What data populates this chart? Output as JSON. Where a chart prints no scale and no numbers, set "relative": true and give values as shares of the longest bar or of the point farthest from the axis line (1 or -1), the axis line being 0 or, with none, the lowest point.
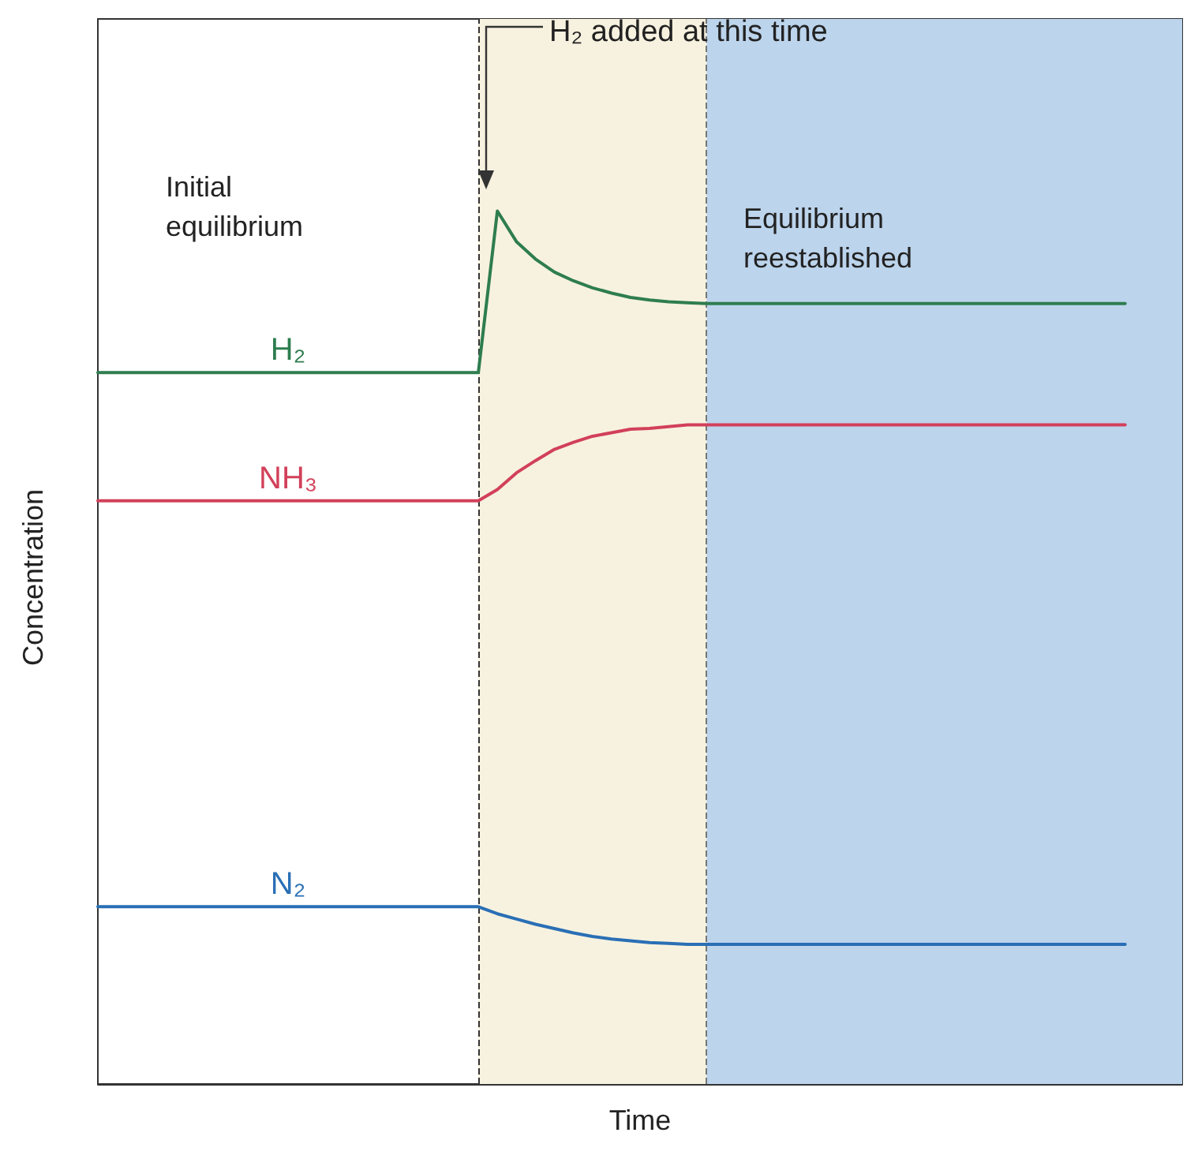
{
  "chart_data": {
    "type": "line",
    "relative": true,
    "xlabel": "Time",
    "ylabel": "Concentration",
    "tick_labels": false,
    "legend": false,
    "grid": false,
    "marker": "none",
    "line_style": "solid",
    "categories": [
      null,
      null,
      null,
      null,
      null,
      null,
      null,
      null,
      null,
      null,
      null,
      null,
      null,
      null,
      null,
      null,
      null,
      null,
      null,
      null,
      null,
      null,
      null,
      null,
      null,
      null,
      null,
      null,
      null,
      null,
      null,
      null,
      null,
      null,
      null,
      null,
      null,
      null,
      null,
      null,
      null,
      null,
      null,
      null,
      null,
      null,
      null,
      null,
      null,
      null,
      null,
      null,
      null,
      null,
      null,
      null,
      null,
      null
    ],
    "series": [
      {
        "name": "H₂",
        "color": "#2e7d4f",
        "values": [
          0.815,
          0.815,
          0.815,
          0.815,
          0.815,
          0.815,
          0.815,
          0.815,
          0.815,
          0.815,
          0.815,
          0.815,
          0.815,
          0.815,
          0.815,
          0.815,
          0.815,
          0.815,
          0.815,
          0.815,
          0.815,
          1.0,
          0.965,
          0.945,
          0.93,
          0.92,
          0.912,
          0.906,
          0.901,
          0.898,
          0.896,
          0.895,
          0.894,
          0.894,
          0.894,
          0.894,
          0.894,
          0.894,
          0.894,
          0.894,
          0.894,
          0.894,
          0.894,
          0.894,
          0.894,
          0.894,
          0.894,
          0.894,
          0.894,
          0.894,
          0.894,
          0.894,
          0.894,
          0.894,
          0.894,
          null,
          null,
          null
        ]
      },
      {
        "name": "NH₃",
        "color": "#d2405a",
        "values": [
          0.668,
          0.668,
          0.668,
          0.668,
          0.668,
          0.668,
          0.668,
          0.668,
          0.668,
          0.668,
          0.668,
          0.668,
          0.668,
          0.668,
          0.668,
          0.668,
          0.668,
          0.668,
          0.668,
          0.668,
          0.668,
          0.681,
          0.7,
          0.714,
          0.727,
          0.735,
          0.742,
          0.746,
          0.75,
          0.751,
          0.753,
          0.755,
          0.755,
          0.755,
          0.755,
          0.755,
          0.755,
          0.755,
          0.755,
          0.755,
          0.755,
          0.755,
          0.755,
          0.755,
          0.755,
          0.755,
          0.755,
          0.755,
          0.755,
          0.755,
          0.755,
          0.755,
          0.755,
          0.755,
          0.755,
          null,
          null,
          null
        ]
      },
      {
        "name": "N₂",
        "color": "#2a6fb5",
        "values": [
          0.203,
          0.203,
          0.203,
          0.203,
          0.203,
          0.203,
          0.203,
          0.203,
          0.203,
          0.203,
          0.203,
          0.203,
          0.203,
          0.203,
          0.203,
          0.203,
          0.203,
          0.203,
          0.203,
          0.203,
          0.203,
          0.195,
          0.189,
          0.183,
          0.178,
          0.173,
          0.169,
          0.166,
          0.164,
          0.162,
          0.161,
          0.16,
          0.16,
          0.16,
          0.16,
          0.16,
          0.16,
          0.16,
          0.16,
          0.16,
          0.16,
          0.16,
          0.16,
          0.16,
          0.16,
          0.16,
          0.16,
          0.16,
          0.16,
          0.16,
          0.16,
          0.16,
          0.16,
          0.16,
          0.16,
          null,
          null,
          null
        ]
      }
    ],
    "annotations": [
      "Initial\nequilibrium",
      "Equilibrium\nreestablished",
      "H₂ added at this time"
    ]
  }
}
